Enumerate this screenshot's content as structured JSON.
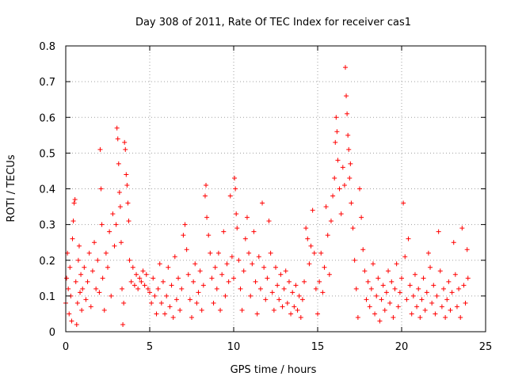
{
  "chart_data": {
    "type": "scatter",
    "title": "Day 308 of 2011, Rate Of TEC Index for receiver cas1",
    "xlabel": "GPS time / hours",
    "ylabel": "ROTI / TECUs",
    "xlim": [
      0,
      25
    ],
    "ylim": [
      0,
      0.8
    ],
    "x_ticks": [
      0,
      5,
      10,
      15,
      20,
      25
    ],
    "y_ticks": [
      0,
      0.1,
      0.2,
      0.3,
      0.4,
      0.5,
      0.6,
      0.7,
      0.8
    ],
    "x_tick_labels": [
      "0",
      "5",
      "10",
      "15",
      "20",
      "25"
    ],
    "y_tick_labels": [
      "0",
      "0.1",
      "0.2",
      "0.3",
      "0.4",
      "0.5",
      "0.6",
      "0.7",
      "0.8"
    ],
    "grid": true,
    "legend": "none",
    "marker": "plus",
    "series": [
      {
        "color": "#ff0000",
        "points": [
          [
            0.0,
            0.08
          ],
          [
            0.05,
            0.15
          ],
          [
            0.1,
            0.22
          ],
          [
            0.15,
            0.12
          ],
          [
            0.2,
            0.05
          ],
          [
            0.25,
            0.18
          ],
          [
            0.3,
            0.1
          ],
          [
            0.35,
            0.03
          ],
          [
            0.4,
            0.26
          ],
          [
            0.45,
            0.31
          ],
          [
            0.5,
            0.36
          ],
          [
            0.55,
            0.37
          ],
          [
            0.6,
            0.14
          ],
          [
            0.65,
            0.02
          ],
          [
            0.7,
            0.08
          ],
          [
            0.75,
            0.2
          ],
          [
            0.8,
            0.24
          ],
          [
            0.85,
            0.11
          ],
          [
            0.9,
            0.16
          ],
          [
            0.95,
            0.06
          ],
          [
            1.0,
            0.12
          ],
          [
            1.1,
            0.18
          ],
          [
            1.2,
            0.09
          ],
          [
            1.3,
            0.14
          ],
          [
            1.4,
            0.22
          ],
          [
            1.5,
            0.07
          ],
          [
            1.6,
            0.17
          ],
          [
            1.7,
            0.25
          ],
          [
            1.8,
            0.12
          ],
          [
            1.9,
            0.2
          ],
          [
            2.0,
            0.11
          ],
          [
            2.05,
            0.51
          ],
          [
            2.1,
            0.4
          ],
          [
            2.15,
            0.3
          ],
          [
            2.2,
            0.15
          ],
          [
            2.3,
            0.06
          ],
          [
            2.4,
            0.22
          ],
          [
            2.5,
            0.18
          ],
          [
            2.6,
            0.28
          ],
          [
            2.7,
            0.1
          ],
          [
            2.8,
            0.33
          ],
          [
            2.9,
            0.24
          ],
          [
            3.0,
            0.3
          ],
          [
            3.05,
            0.57
          ],
          [
            3.1,
            0.54
          ],
          [
            3.15,
            0.47
          ],
          [
            3.2,
            0.39
          ],
          [
            3.25,
            0.35
          ],
          [
            3.3,
            0.25
          ],
          [
            3.35,
            0.12
          ],
          [
            3.4,
            0.02
          ],
          [
            3.45,
            0.08
          ],
          [
            3.5,
            0.53
          ],
          [
            3.55,
            0.51
          ],
          [
            3.6,
            0.44
          ],
          [
            3.65,
            0.41
          ],
          [
            3.7,
            0.36
          ],
          [
            3.75,
            0.31
          ],
          [
            3.8,
            0.2
          ],
          [
            3.9,
            0.14
          ],
          [
            4.0,
            0.18
          ],
          [
            4.1,
            0.13
          ],
          [
            4.2,
            0.16
          ],
          [
            4.3,
            0.12
          ],
          [
            4.4,
            0.15
          ],
          [
            4.5,
            0.14
          ],
          [
            4.6,
            0.17
          ],
          [
            4.7,
            0.13
          ],
          [
            4.8,
            0.16
          ],
          [
            4.9,
            0.12
          ],
          [
            5.0,
            0.11
          ],
          [
            5.1,
            0.08
          ],
          [
            5.2,
            0.15
          ],
          [
            5.3,
            0.1
          ],
          [
            5.4,
            0.05
          ],
          [
            5.5,
            0.12
          ],
          [
            5.6,
            0.19
          ],
          [
            5.7,
            0.08
          ],
          [
            5.8,
            0.14
          ],
          [
            5.9,
            0.05
          ],
          [
            6.0,
            0.1
          ],
          [
            6.1,
            0.18
          ],
          [
            6.2,
            0.07
          ],
          [
            6.3,
            0.13
          ],
          [
            6.4,
            0.04
          ],
          [
            6.5,
            0.21
          ],
          [
            6.6,
            0.09
          ],
          [
            6.7,
            0.15
          ],
          [
            6.8,
            0.06
          ],
          [
            6.9,
            0.12
          ],
          [
            7.0,
            0.27
          ],
          [
            7.1,
            0.3
          ],
          [
            7.2,
            0.23
          ],
          [
            7.3,
            0.16
          ],
          [
            7.4,
            0.09
          ],
          [
            7.5,
            0.04
          ],
          [
            7.6,
            0.14
          ],
          [
            7.7,
            0.19
          ],
          [
            7.8,
            0.08
          ],
          [
            7.9,
            0.11
          ],
          [
            8.0,
            0.17
          ],
          [
            8.1,
            0.06
          ],
          [
            8.2,
            0.13
          ],
          [
            8.3,
            0.38
          ],
          [
            8.35,
            0.41
          ],
          [
            8.4,
            0.32
          ],
          [
            8.5,
            0.27
          ],
          [
            8.6,
            0.22
          ],
          [
            8.7,
            0.15
          ],
          [
            8.8,
            0.08
          ],
          [
            8.9,
            0.18
          ],
          [
            9.0,
            0.12
          ],
          [
            9.1,
            0.22
          ],
          [
            9.2,
            0.06
          ],
          [
            9.3,
            0.16
          ],
          [
            9.4,
            0.28
          ],
          [
            9.5,
            0.1
          ],
          [
            9.6,
            0.19
          ],
          [
            9.7,
            0.14
          ],
          [
            9.8,
            0.38
          ],
          [
            9.9,
            0.21
          ],
          [
            10.0,
            0.15
          ],
          [
            10.05,
            0.43
          ],
          [
            10.1,
            0.4
          ],
          [
            10.15,
            0.33
          ],
          [
            10.2,
            0.29
          ],
          [
            10.3,
            0.2
          ],
          [
            10.4,
            0.12
          ],
          [
            10.5,
            0.06
          ],
          [
            10.6,
            0.17
          ],
          [
            10.7,
            0.26
          ],
          [
            10.8,
            0.32
          ],
          [
            10.9,
            0.22
          ],
          [
            11.0,
            0.1
          ],
          [
            11.1,
            0.19
          ],
          [
            11.2,
            0.28
          ],
          [
            11.3,
            0.14
          ],
          [
            11.4,
            0.05
          ],
          [
            11.5,
            0.21
          ],
          [
            11.6,
            0.12
          ],
          [
            11.7,
            0.36
          ],
          [
            11.8,
            0.18
          ],
          [
            11.9,
            0.09
          ],
          [
            12.0,
            0.15
          ],
          [
            12.1,
            0.31
          ],
          [
            12.2,
            0.22
          ],
          [
            12.3,
            0.11
          ],
          [
            12.4,
            0.06
          ],
          [
            12.5,
            0.18
          ],
          [
            12.6,
            0.13
          ],
          [
            12.7,
            0.09
          ],
          [
            12.8,
            0.16
          ],
          [
            12.9,
            0.07
          ],
          [
            13.0,
            0.12
          ],
          [
            13.1,
            0.17
          ],
          [
            13.2,
            0.08
          ],
          [
            13.3,
            0.14
          ],
          [
            13.4,
            0.05
          ],
          [
            13.5,
            0.11
          ],
          [
            13.6,
            0.07
          ],
          [
            13.7,
            0.13
          ],
          [
            13.8,
            0.06
          ],
          [
            13.9,
            0.1
          ],
          [
            14.0,
            0.04
          ],
          [
            14.1,
            0.09
          ],
          [
            14.2,
            0.14
          ],
          [
            14.3,
            0.29
          ],
          [
            14.4,
            0.26
          ],
          [
            14.5,
            0.19
          ],
          [
            14.6,
            0.24
          ],
          [
            14.7,
            0.34
          ],
          [
            14.8,
            0.22
          ],
          [
            14.9,
            0.12
          ],
          [
            15.0,
            0.05
          ],
          [
            15.1,
            0.14
          ],
          [
            15.2,
            0.22
          ],
          [
            15.3,
            0.11
          ],
          [
            15.4,
            0.18
          ],
          [
            15.5,
            0.35
          ],
          [
            15.6,
            0.27
          ],
          [
            15.7,
            0.16
          ],
          [
            15.8,
            0.31
          ],
          [
            15.9,
            0.38
          ],
          [
            16.0,
            0.43
          ],
          [
            16.05,
            0.53
          ],
          [
            16.1,
            0.6
          ],
          [
            16.15,
            0.56
          ],
          [
            16.2,
            0.48
          ],
          [
            16.3,
            0.4
          ],
          [
            16.4,
            0.33
          ],
          [
            16.5,
            0.46
          ],
          [
            16.6,
            0.41
          ],
          [
            16.65,
            0.74
          ],
          [
            16.7,
            0.66
          ],
          [
            16.75,
            0.61
          ],
          [
            16.8,
            0.55
          ],
          [
            16.85,
            0.51
          ],
          [
            16.9,
            0.43
          ],
          [
            16.95,
            0.47
          ],
          [
            17.0,
            0.36
          ],
          [
            17.1,
            0.29
          ],
          [
            17.2,
            0.2
          ],
          [
            17.3,
            0.12
          ],
          [
            17.4,
            0.04
          ],
          [
            17.5,
            0.4
          ],
          [
            17.6,
            0.32
          ],
          [
            17.7,
            0.23
          ],
          [
            17.8,
            0.17
          ],
          [
            17.9,
            0.09
          ],
          [
            18.0,
            0.14
          ],
          [
            18.1,
            0.07
          ],
          [
            18.2,
            0.12
          ],
          [
            18.3,
            0.19
          ],
          [
            18.4,
            0.05
          ],
          [
            18.5,
            0.1
          ],
          [
            18.6,
            0.15
          ],
          [
            18.7,
            0.03
          ],
          [
            18.8,
            0.09
          ],
          [
            18.9,
            0.13
          ],
          [
            19.0,
            0.06
          ],
          [
            19.1,
            0.11
          ],
          [
            19.2,
            0.17
          ],
          [
            19.3,
            0.08
          ],
          [
            19.4,
            0.14
          ],
          [
            19.5,
            0.04
          ],
          [
            19.6,
            0.12
          ],
          [
            19.7,
            0.19
          ],
          [
            19.8,
            0.07
          ],
          [
            19.9,
            0.11
          ],
          [
            20.0,
            0.15
          ],
          [
            20.1,
            0.36
          ],
          [
            20.2,
            0.21
          ],
          [
            20.3,
            0.09
          ],
          [
            20.4,
            0.26
          ],
          [
            20.5,
            0.13
          ],
          [
            20.6,
            0.05
          ],
          [
            20.7,
            0.1
          ],
          [
            20.8,
            0.16
          ],
          [
            20.9,
            0.07
          ],
          [
            21.0,
            0.12
          ],
          [
            21.1,
            0.04
          ],
          [
            21.2,
            0.09
          ],
          [
            21.3,
            0.15
          ],
          [
            21.4,
            0.06
          ],
          [
            21.5,
            0.11
          ],
          [
            21.6,
            0.22
          ],
          [
            21.7,
            0.18
          ],
          [
            21.8,
            0.08
          ],
          [
            21.9,
            0.13
          ],
          [
            22.0,
            0.05
          ],
          [
            22.1,
            0.1
          ],
          [
            22.2,
            0.28
          ],
          [
            22.3,
            0.17
          ],
          [
            22.4,
            0.07
          ],
          [
            22.5,
            0.12
          ],
          [
            22.6,
            0.04
          ],
          [
            22.7,
            0.09
          ],
          [
            22.8,
            0.14
          ],
          [
            22.9,
            0.06
          ],
          [
            23.0,
            0.11
          ],
          [
            23.1,
            0.25
          ],
          [
            23.2,
            0.16
          ],
          [
            23.3,
            0.07
          ],
          [
            23.4,
            0.12
          ],
          [
            23.5,
            0.04
          ],
          [
            23.6,
            0.29
          ],
          [
            23.7,
            0.13
          ],
          [
            23.8,
            0.08
          ],
          [
            23.9,
            0.23
          ],
          [
            23.95,
            0.15
          ]
        ]
      }
    ]
  }
}
